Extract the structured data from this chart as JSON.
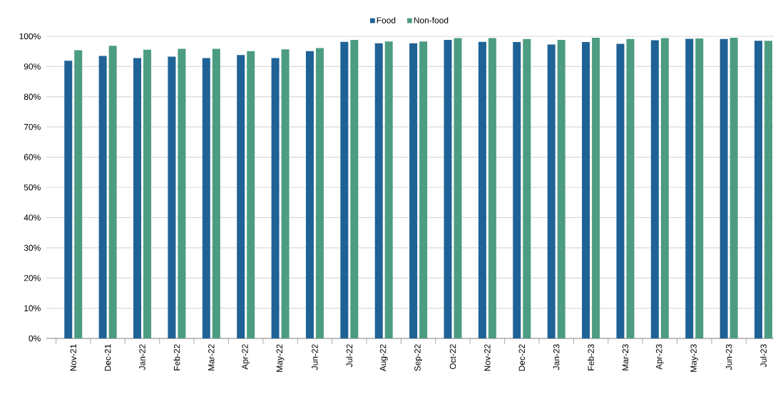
{
  "chart_data": {
    "type": "bar",
    "categories": [
      "Nov-21",
      "Dec-21",
      "Jan-22",
      "Feb-22",
      "Mar-22",
      "Apr-22",
      "May-22",
      "Jun-22",
      "Jul-22",
      "Aug-22",
      "Sep-22",
      "Oct-22",
      "Nov-22",
      "Dec-22",
      "Jan-23",
      "Feb-23",
      "Mar-23",
      "Apr-23",
      "May-23",
      "Jun-23",
      "Jul-23"
    ],
    "series": [
      {
        "name": "Food",
        "color": "#1f6296",
        "values": [
          91.9,
          93.5,
          92.8,
          93.3,
          92.8,
          93.8,
          92.8,
          95.1,
          98.2,
          97.7,
          97.7,
          98.8,
          98.2,
          98.1,
          97.3,
          98.1,
          97.5,
          98.7,
          99.2,
          99.1,
          98.5
        ]
      },
      {
        "name": "Non-food",
        "color": "#4c9c81",
        "values": [
          95.4,
          96.9,
          95.6,
          95.9,
          95.9,
          95.1,
          95.7,
          96.1,
          98.8,
          98.3,
          98.3,
          99.4,
          99.4,
          99.1,
          98.8,
          99.5,
          99.1,
          99.4,
          99.3,
          99.5,
          98.5
        ]
      }
    ],
    "ylim": [
      0,
      100
    ],
    "yticks": [
      {
        "value": 0,
        "label": "0%"
      },
      {
        "value": 10,
        "label": "10%"
      },
      {
        "value": 20,
        "label": "20%"
      },
      {
        "value": 30,
        "label": "30%"
      },
      {
        "value": 40,
        "label": "40%"
      },
      {
        "value": 50,
        "label": "50%"
      },
      {
        "value": 60,
        "label": "60%"
      },
      {
        "value": 70,
        "label": "70%"
      },
      {
        "value": 80,
        "label": "80%"
      },
      {
        "value": 90,
        "label": "90%"
      },
      {
        "value": 100,
        "label": "100%"
      }
    ],
    "grid": "y",
    "legend": "top"
  }
}
